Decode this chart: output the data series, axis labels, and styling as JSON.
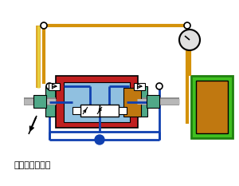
{
  "bg_color": "#ffffff",
  "title_text": "需增压气体入口",
  "colors": {
    "orange_line": "#D4920A",
    "blue_line": "#1040B0",
    "green_box": "#40C020",
    "orange_box": "#C07810",
    "red_box": "#C02020",
    "blue_box": "#90C0E0",
    "teal_box": "#50A888",
    "silver": "#B8B8B8",
    "silver_dark": "#888888",
    "white": "#FFFFFF",
    "black": "#000000",
    "dark_green": "#208010",
    "yellow_pipe": "#E8D040",
    "gauge_gray": "#E0E0E0"
  },
  "figsize": [
    3.0,
    2.33
  ],
  "dpi": 100
}
